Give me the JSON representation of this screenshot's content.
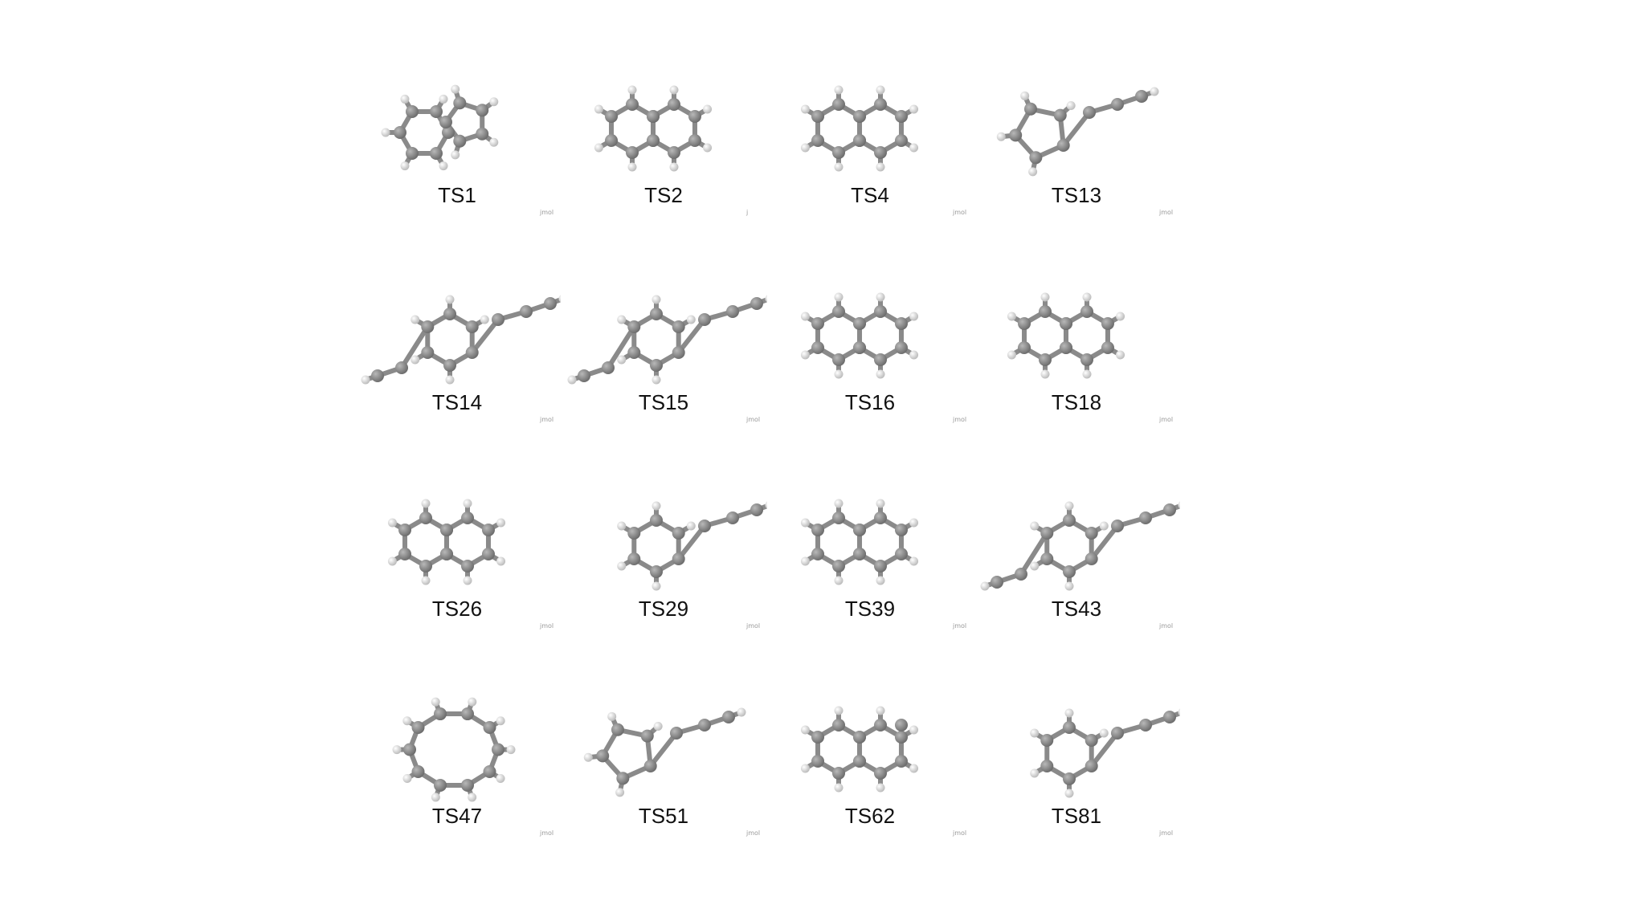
{
  "panels": [
    {
      "label": "TS1",
      "watermark": "jmol",
      "molecule": "indene"
    },
    {
      "label": "TS2",
      "watermark": "j",
      "molecule": "naphthalene"
    },
    {
      "label": "TS4",
      "watermark": "jmol",
      "molecule": "naphthalene"
    },
    {
      "label": "TS13",
      "watermark": "jmol",
      "molecule": "cyclopentyl-alkyne"
    },
    {
      "label": "TS14",
      "watermark": "jmol",
      "molecule": "phenyl-vinyl-chain"
    },
    {
      "label": "TS15",
      "watermark": "jmol",
      "molecule": "disubstituted-benzene"
    },
    {
      "label": "TS16",
      "watermark": "jmol",
      "molecule": "bicyclic"
    },
    {
      "label": "TS18",
      "watermark": "jmol",
      "molecule": "bicyclic"
    },
    {
      "label": "TS26",
      "watermark": "jmol",
      "molecule": "bicyclic"
    },
    {
      "label": "TS29",
      "watermark": "jmol",
      "molecule": "cyclopropyl-vinyl-benzene"
    },
    {
      "label": "TS39",
      "watermark": "jmol",
      "molecule": "bicyclic"
    },
    {
      "label": "TS43",
      "watermark": "jmol",
      "molecule": "disubstituted-benzene"
    },
    {
      "label": "TS47",
      "watermark": "jmol",
      "molecule": "macrocycle"
    },
    {
      "label": "TS51",
      "watermark": "jmol",
      "molecule": "cyclopentenyl-chain"
    },
    {
      "label": "TS62",
      "watermark": "jmol",
      "molecule": "tricyclic"
    },
    {
      "label": "TS81",
      "watermark": "jmol",
      "molecule": "phenyl-alkyne-chain"
    }
  ],
  "colors": {
    "carbon": "#6e6e6e",
    "hydrogen": "#ececec",
    "bond": "#8a8a8a",
    "label": "#111111",
    "watermark": "#9a9a9a"
  }
}
